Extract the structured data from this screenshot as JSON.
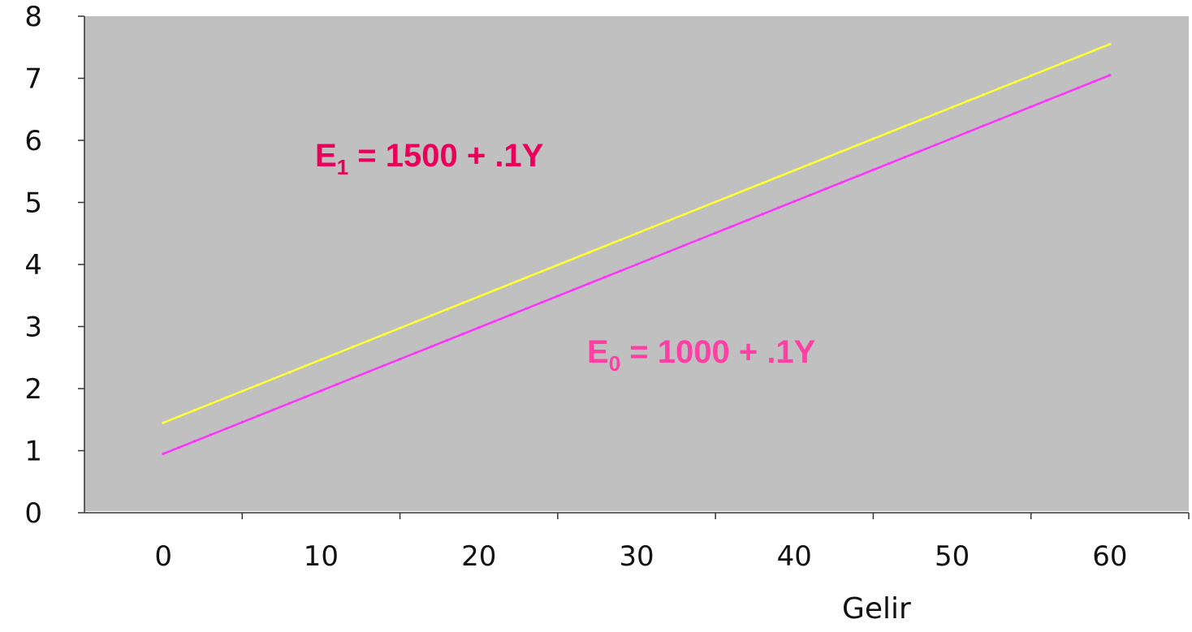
{
  "chart_data": {
    "type": "line",
    "xlabel": "Gelir",
    "ylabel": "",
    "x_ticks": [
      "0",
      "10",
      "20",
      "30",
      "40",
      "50",
      "60"
    ],
    "y_ticks": [
      "0",
      "1",
      "2",
      "3",
      "4",
      "5",
      "6",
      "7",
      "8"
    ],
    "xlim": [
      -5,
      65
    ],
    "ylim": [
      0,
      8
    ],
    "grid": false,
    "plot_background": "#c0c0c0",
    "series": [
      {
        "name": "E1 = 1500 + .1Y",
        "label_main": "E",
        "label_sub": "1",
        "label_rest": " = 1500 + .1Y",
        "color": "#ffff33",
        "label_color": "#e8005a",
        "x": [
          0,
          60
        ],
        "y": [
          1.45,
          7.55
        ]
      },
      {
        "name": "E0 = 1000 + .1Y",
        "label_main": "E",
        "label_sub": "0",
        "label_rest": " = 1000 + .1Y",
        "color": "#ff33ff",
        "label_color": "#ff3fa4",
        "x": [
          0,
          60
        ],
        "y": [
          0.95,
          7.05
        ]
      }
    ]
  }
}
